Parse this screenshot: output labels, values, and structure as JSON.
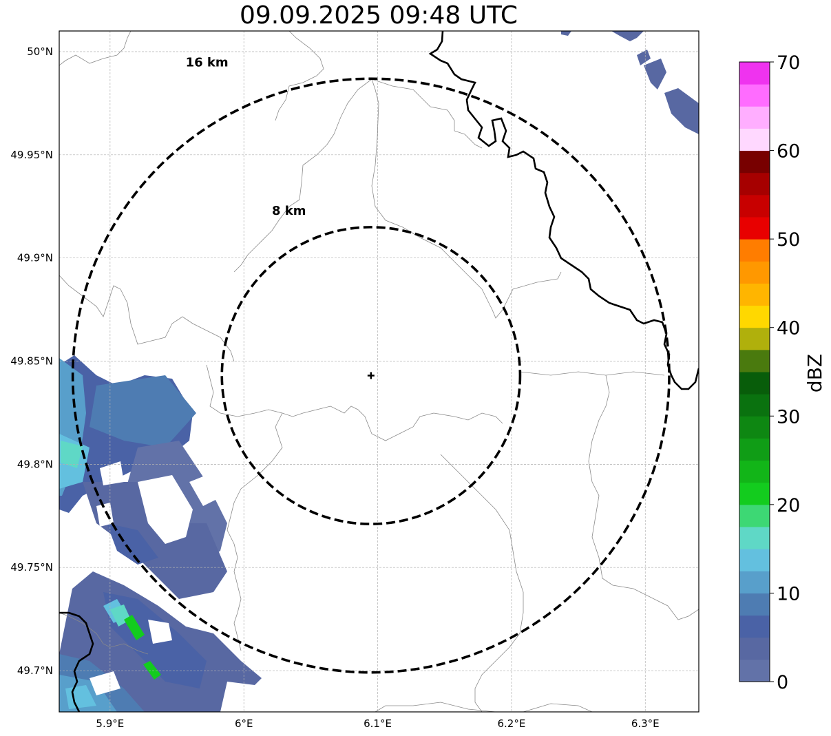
{
  "title": "09.09.2025 09:48 UTC",
  "map": {
    "lon_min": 5.862,
    "lon_max": 6.34,
    "lat_min": 49.68,
    "lat_max": 50.01,
    "center": {
      "lon": 6.095,
      "lat": 49.843
    },
    "gridlines": true,
    "x_ticks": [
      {
        "value": 5.9,
        "label": "5.9°E"
      },
      {
        "value": 6.0,
        "label": "6°E"
      },
      {
        "value": 6.1,
        "label": "6.1°E"
      },
      {
        "value": 6.2,
        "label": "6.2°E"
      },
      {
        "value": 6.3,
        "label": "6.3°E"
      }
    ],
    "y_ticks": [
      {
        "value": 50.0,
        "label": "50°N"
      },
      {
        "value": 49.95,
        "label": "49.95°N"
      },
      {
        "value": 49.9,
        "label": "49.9°N"
      },
      {
        "value": 49.85,
        "label": "49.85°N"
      },
      {
        "value": 49.8,
        "label": "49.8°N"
      },
      {
        "value": 49.75,
        "label": "49.75°N"
      },
      {
        "value": 49.7,
        "label": "49.7°N"
      }
    ],
    "range_rings": [
      {
        "radius_km": 8,
        "label": "8 km"
      },
      {
        "radius_km": 16,
        "label": "16 km"
      }
    ]
  },
  "colorbar": {
    "label": "dBZ",
    "min": 0,
    "max": 70,
    "ticks": [
      0,
      10,
      20,
      30,
      40,
      50,
      60,
      70
    ],
    "colors": [
      "#6272a8",
      "#5868a2",
      "#4a62a6",
      "#4e7cb2",
      "#589fcb",
      "#63c0df",
      "#5fd8c6",
      "#3dd874",
      "#13cc1e",
      "#12b518",
      "#109d16",
      "#0e8712",
      "#0a720f",
      "#085d0a",
      "#4a7a0e",
      "#b0b00c",
      "#ffd800",
      "#ffb500",
      "#ff9800",
      "#ff7d00",
      "#e80000",
      "#c80000",
      "#a60000",
      "#780000",
      "#ffd8ff",
      "#ffaeff",
      "#ff6cff",
      "#ef33ef"
    ]
  }
}
